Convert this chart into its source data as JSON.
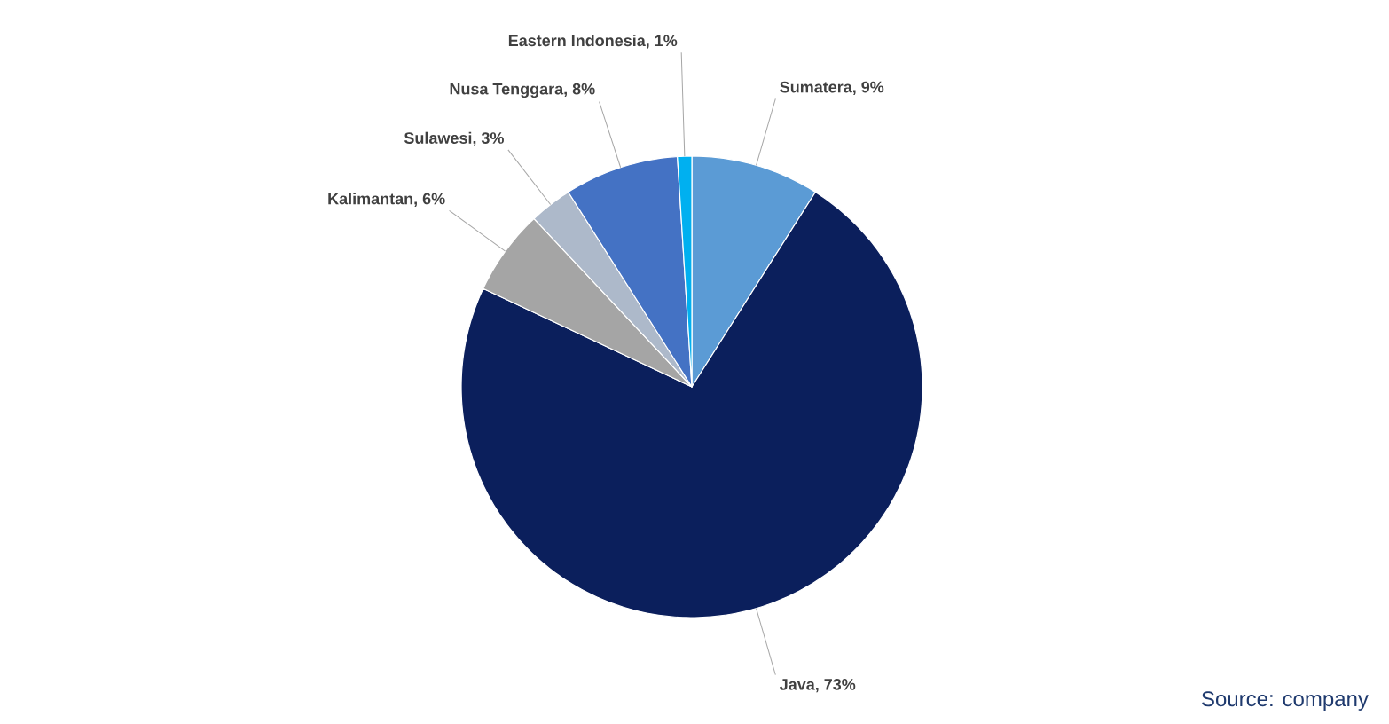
{
  "chart_data": {
    "type": "pie",
    "categories": [
      "Sumatera, 9%",
      "Java, 73%",
      "Kalimantan, 6%",
      "Sulawesi, 3%",
      "Nusa Tenggara, 8%",
      "Eastern Indonesia, 1%"
    ],
    "values": [
      9,
      73,
      6,
      3,
      8,
      1
    ],
    "colors": [
      "#5b9bd5",
      "#0b1f5c",
      "#a5a5a5",
      "#adb9ca",
      "#4472c4",
      "#00b0f0"
    ],
    "annotations": [
      "Source: company"
    ]
  }
}
